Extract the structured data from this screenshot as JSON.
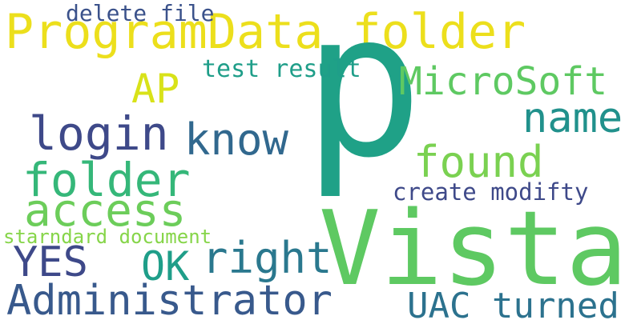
{
  "words": [
    {
      "id": "programdata",
      "text": "ProgramData folder",
      "color": "#ecdf1c"
    },
    {
      "id": "p",
      "text": "p",
      "color": "#1fa187"
    },
    {
      "id": "vista",
      "text": "Vista",
      "color": "#5ec962"
    },
    {
      "id": "delete",
      "text": "delete file",
      "color": "#3b528b"
    },
    {
      "id": "ap",
      "text": "AP",
      "color": "#d8e219"
    },
    {
      "id": "testresult",
      "text": "test result",
      "color": "#1f9e89"
    },
    {
      "id": "microsoft",
      "text": "MicroSoft",
      "color": "#5ec962"
    },
    {
      "id": "login",
      "text": "login",
      "color": "#3e4989"
    },
    {
      "id": "know",
      "text": "know",
      "color": "#31688e"
    },
    {
      "id": "name",
      "text": "name",
      "color": "#21918c"
    },
    {
      "id": "found",
      "text": "found",
      "color": "#7ad151"
    },
    {
      "id": "folder",
      "text": "folder",
      "color": "#35b779"
    },
    {
      "id": "create",
      "text": "create modifty",
      "color": "#3e4989"
    },
    {
      "id": "access",
      "text": "access",
      "color": "#6ccd5a"
    },
    {
      "id": "starndard",
      "text": "starndard document",
      "color": "#86d549"
    },
    {
      "id": "yes",
      "text": "YES",
      "color": "#3e4989"
    },
    {
      "id": "ok",
      "text": "OK",
      "color": "#1f9e89"
    },
    {
      "id": "right",
      "text": "right",
      "color": "#2a788e"
    },
    {
      "id": "administrator",
      "text": "Administrator",
      "color": "#38598c"
    },
    {
      "id": "uac",
      "text": "UAC turned",
      "color": "#2c728e"
    }
  ]
}
